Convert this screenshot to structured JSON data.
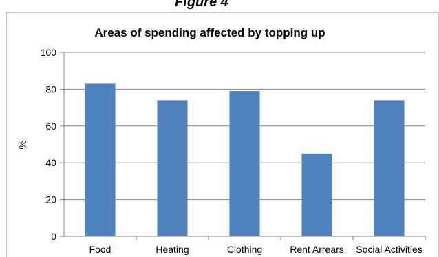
{
  "figure_label": "Figure 4",
  "chart_data": {
    "type": "bar",
    "title": "Areas of spending affected by topping up",
    "xlabel": "",
    "ylabel": "%",
    "ylim": [
      0,
      100
    ],
    "yticks": [
      0,
      20,
      40,
      60,
      80,
      100
    ],
    "categories": [
      "Food",
      "Heating",
      "Clothing",
      "Rent Arrears",
      "Social Activities"
    ],
    "values": [
      83,
      74,
      79,
      45,
      74
    ],
    "bar_color": "#4f81bd",
    "grid": true,
    "legend": "none"
  }
}
